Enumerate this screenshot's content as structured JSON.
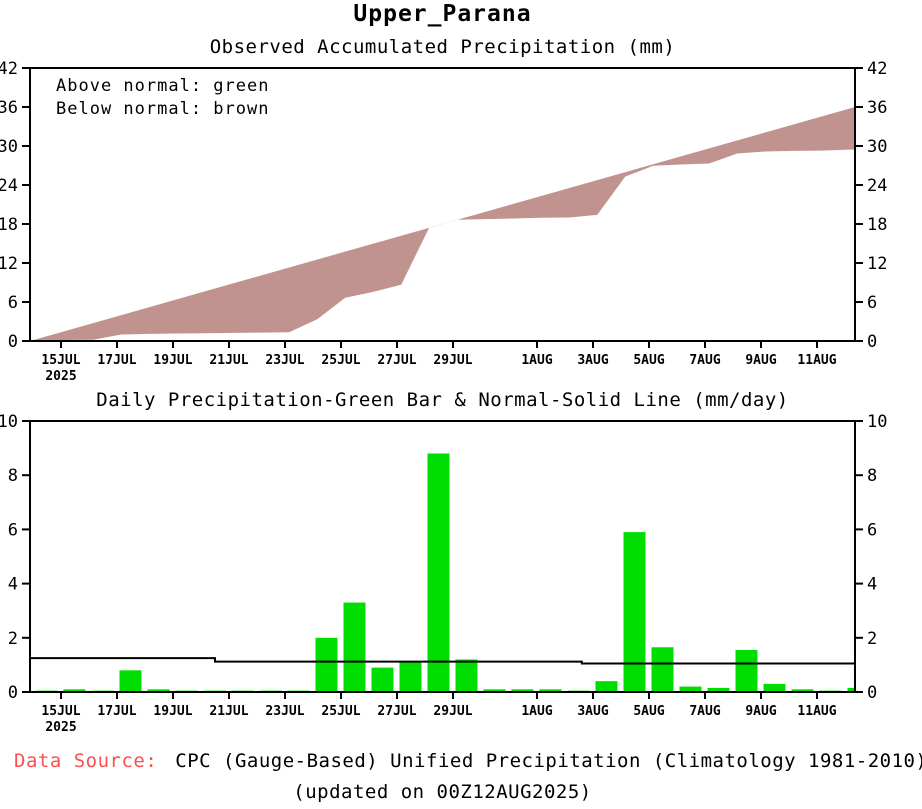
{
  "header": {
    "title": "Upper_Parana"
  },
  "colors": {
    "below_normal_fill": "#c1938f",
    "above_normal_fill": "#00dd00",
    "bar_green": "#00dd00",
    "normal_line": "#000000",
    "axis": "#000000",
    "data_source_red": "#fa5050"
  },
  "footer": {
    "source_label": "Data Source:",
    "source_text": "CPC (Gauge-Based) Unified Precipitation (Climatology 1981-2010)",
    "updated_text": "(updated on 00Z12AUG2025)"
  },
  "chart_data": [
    {
      "type": "area",
      "title": "Observed Accumulated Precipitation (mm)",
      "annotations": [
        "Above normal: green",
        "Below normal: brown"
      ],
      "ylim": [
        0,
        42
      ],
      "yticks": [
        0,
        6,
        12,
        18,
        24,
        30,
        36,
        42
      ],
      "tick_dates": [
        "15JUL",
        "17JUL",
        "19JUL",
        "21JUL",
        "23JUL",
        "25JUL",
        "27JUL",
        "29JUL",
        "1AUG",
        "3AUG",
        "5AUG",
        "7AUG",
        "9AUG",
        "11AUG"
      ],
      "tick_day_index": [
        1,
        3,
        5,
        7,
        9,
        11,
        13,
        15,
        18,
        20,
        22,
        24,
        26,
        28
      ],
      "year_label": "2025",
      "x_range_days": [
        "14JUL2025",
        "12AUG2025"
      ],
      "grid": false,
      "legend_position": "top-left",
      "normal_accumulated_start": 0,
      "normal_accumulated_end": 36,
      "observed_accumulated": [
        0.05,
        0.15,
        0.2,
        1.0,
        1.1,
        1.15,
        1.2,
        1.25,
        1.3,
        1.35,
        3.35,
        6.65,
        7.55,
        8.65,
        17.45,
        18.65,
        18.75,
        18.85,
        18.95,
        19.0,
        19.4,
        25.3,
        26.95,
        27.15,
        27.3,
        28.85,
        29.15,
        29.25,
        29.3,
        29.45
      ],
      "band_meaning": "brown fill where observed accumulation is below normal"
    },
    {
      "type": "bar",
      "title": "Daily Precipitation-Green Bar & Normal-Solid Line (mm/day)",
      "ylim": [
        0,
        10
      ],
      "yticks": [
        0,
        2,
        4,
        6,
        8,
        10
      ],
      "tick_dates": [
        "15JUL",
        "17JUL",
        "19JUL",
        "21JUL",
        "23JUL",
        "25JUL",
        "27JUL",
        "29JUL",
        "1AUG",
        "3AUG",
        "5AUG",
        "7AUG",
        "9AUG",
        "11AUG"
      ],
      "tick_day_index": [
        1,
        3,
        5,
        7,
        9,
        11,
        13,
        15,
        18,
        20,
        22,
        24,
        26,
        28
      ],
      "year_label": "2025",
      "grid": false,
      "dates": [
        "14JUL",
        "15JUL",
        "16JUL",
        "17JUL",
        "18JUL",
        "19JUL",
        "20JUL",
        "21JUL",
        "22JUL",
        "23JUL",
        "24JUL",
        "25JUL",
        "26JUL",
        "27JUL",
        "28JUL",
        "29JUL",
        "30JUL",
        "31JUL",
        "1AUG",
        "2AUG",
        "3AUG",
        "4AUG",
        "5AUG",
        "6AUG",
        "7AUG",
        "8AUG",
        "9AUG",
        "10AUG",
        "11AUG",
        "12AUG"
      ],
      "values": [
        0.05,
        0.1,
        0.05,
        0.8,
        0.1,
        0.05,
        0.05,
        0.05,
        0.05,
        0.05,
        2.0,
        3.3,
        0.9,
        1.1,
        8.8,
        1.2,
        0.1,
        0.1,
        0.1,
        0.05,
        0.4,
        5.9,
        1.65,
        0.2,
        0.15,
        1.55,
        0.3,
        0.1,
        0.05,
        0.15
      ],
      "normal_line_segments": [
        {
          "from_day": -0.11,
          "to_day": 6.5,
          "value": 1.25
        },
        {
          "from_day": 6.5,
          "to_day": 19.6,
          "value": 1.12
        },
        {
          "from_day": 19.6,
          "to_day": 29.36,
          "value": 1.05
        }
      ]
    }
  ]
}
